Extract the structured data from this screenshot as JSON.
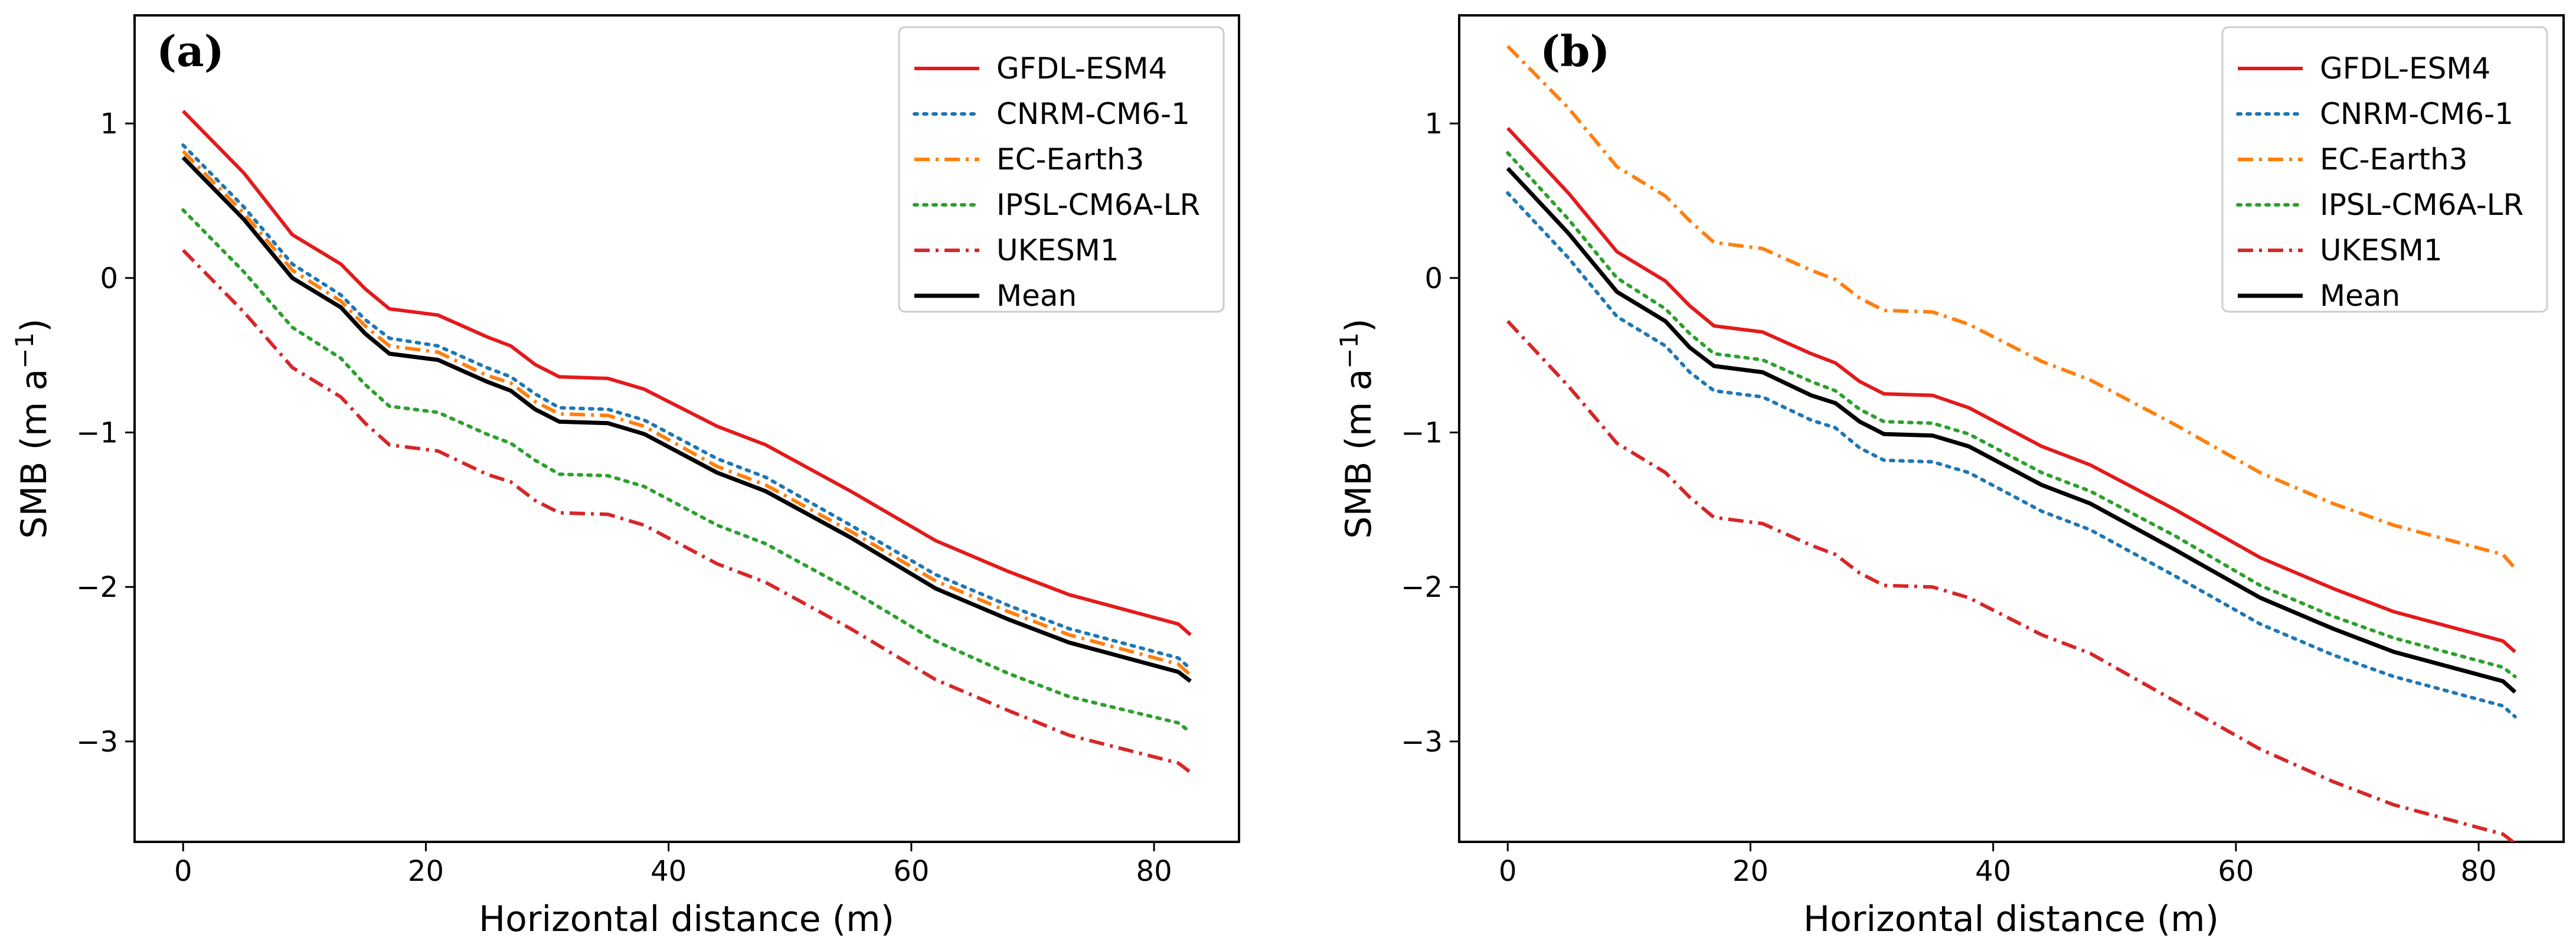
{
  "chart_data": [
    {
      "type": "line",
      "panel_label": "(a)",
      "xlabel": "Horizontal distance (m)",
      "ylabel": "SMB (m a",
      "ylabel_sup": "−1",
      "ylabel_end": ")",
      "xlim": [
        -4,
        87
      ],
      "ylim": [
        -3.65,
        1.7
      ],
      "xticks": [
        0,
        20,
        40,
        60,
        80
      ],
      "yticks": [
        1,
        0,
        -1,
        -2,
        -3
      ],
      "xtick_labels": [
        "0",
        "20",
        "40",
        "60",
        "80"
      ],
      "ytick_labels": [
        "1",
        "0",
        "−1",
        "−2",
        "−3"
      ],
      "legend_position": "top-right",
      "x": [
        0,
        5,
        9,
        13,
        15,
        17,
        21,
        25,
        27,
        29,
        31,
        35,
        38,
        44,
        48,
        55,
        62,
        68,
        73,
        82,
        83
      ],
      "series": [
        {
          "name": "GFDL-ESM4",
          "color": "#e31a1c",
          "style": "solid",
          "values": [
            1.08,
            0.68,
            0.28,
            0.09,
            -0.07,
            -0.2,
            -0.24,
            -0.38,
            -0.44,
            -0.56,
            -0.64,
            -0.65,
            -0.72,
            -0.96,
            -1.08,
            -1.38,
            -1.7,
            -1.9,
            -2.05,
            -2.24,
            -2.31
          ]
        },
        {
          "name": "CNRM-CM6-1",
          "color": "#1f77b4",
          "style": "dotted",
          "values": [
            0.86,
            0.46,
            0.09,
            -0.11,
            -0.27,
            -0.39,
            -0.44,
            -0.58,
            -0.64,
            -0.75,
            -0.84,
            -0.85,
            -0.92,
            -1.17,
            -1.29,
            -1.6,
            -1.92,
            -2.12,
            -2.27,
            -2.46,
            -2.53
          ]
        },
        {
          "name": "EC-Earth3",
          "color": "#ff7f0e",
          "style": "dashdot",
          "values": [
            0.82,
            0.42,
            0.05,
            -0.15,
            -0.31,
            -0.44,
            -0.48,
            -0.63,
            -0.68,
            -0.8,
            -0.88,
            -0.89,
            -0.96,
            -1.22,
            -1.34,
            -1.64,
            -1.96,
            -2.16,
            -2.31,
            -2.5,
            -2.57
          ]
        },
        {
          "name": "IPSL-CM6A-LR",
          "color": "#2ca02c",
          "style": "dotted",
          "values": [
            0.44,
            0.04,
            -0.32,
            -0.52,
            -0.69,
            -0.83,
            -0.87,
            -1.01,
            -1.07,
            -1.18,
            -1.27,
            -1.28,
            -1.35,
            -1.6,
            -1.72,
            -2.02,
            -2.35,
            -2.56,
            -2.71,
            -2.88,
            -2.94
          ]
        },
        {
          "name": "UKESM1",
          "color": "#d62728",
          "style": "dashdot",
          "values": [
            0.18,
            -0.22,
            -0.58,
            -0.77,
            -0.94,
            -1.08,
            -1.12,
            -1.27,
            -1.32,
            -1.44,
            -1.52,
            -1.53,
            -1.6,
            -1.85,
            -1.97,
            -2.27,
            -2.6,
            -2.8,
            -2.96,
            -3.14,
            -3.2
          ]
        },
        {
          "name": "Mean",
          "color": "#000000",
          "style": "solid",
          "values": [
            0.78,
            0.38,
            0.0,
            -0.19,
            -0.36,
            -0.49,
            -0.53,
            -0.67,
            -0.73,
            -0.85,
            -0.93,
            -0.94,
            -1.01,
            -1.26,
            -1.38,
            -1.68,
            -2.01,
            -2.21,
            -2.36,
            -2.55,
            -2.61
          ]
        }
      ]
    },
    {
      "type": "line",
      "panel_label": "(b)",
      "xlabel": "Horizontal distance (m)",
      "ylabel": "SMB (m a",
      "ylabel_sup": "−1",
      "ylabel_end": ")",
      "xlim": [
        -4,
        87
      ],
      "ylim": [
        -3.65,
        1.7
      ],
      "xticks": [
        0,
        20,
        40,
        60,
        80
      ],
      "yticks": [
        1,
        0,
        -1,
        -2,
        -3
      ],
      "xtick_labels": [
        "0",
        "20",
        "40",
        "60",
        "80"
      ],
      "ytick_labels": [
        "1",
        "0",
        "−1",
        "−2",
        "−3"
      ],
      "legend_position": "top-right",
      "x": [
        0,
        5,
        9,
        13,
        15,
        17,
        21,
        25,
        27,
        29,
        31,
        35,
        38,
        44,
        48,
        55,
        62,
        68,
        73,
        82,
        83
      ],
      "series": [
        {
          "name": "GFDL-ESM4",
          "color": "#e31a1c",
          "style": "solid",
          "values": [
            0.97,
            0.55,
            0.17,
            -0.02,
            -0.18,
            -0.31,
            -0.35,
            -0.49,
            -0.55,
            -0.67,
            -0.75,
            -0.76,
            -0.84,
            -1.09,
            -1.21,
            -1.5,
            -1.81,
            -2.01,
            -2.16,
            -2.35,
            -2.42
          ]
        },
        {
          "name": "CNRM-CM6-1",
          "color": "#1f77b4",
          "style": "dotted",
          "values": [
            0.55,
            0.13,
            -0.25,
            -0.44,
            -0.61,
            -0.73,
            -0.77,
            -0.92,
            -0.97,
            -1.1,
            -1.18,
            -1.19,
            -1.26,
            -1.51,
            -1.63,
            -1.93,
            -2.24,
            -2.44,
            -2.58,
            -2.77,
            -2.84
          ]
        },
        {
          "name": "EC-Earth3",
          "color": "#ff7f0e",
          "style": "dashdot",
          "values": [
            1.5,
            1.1,
            0.72,
            0.53,
            0.37,
            0.23,
            0.19,
            0.05,
            -0.01,
            -0.13,
            -0.21,
            -0.22,
            -0.3,
            -0.54,
            -0.66,
            -0.95,
            -1.26,
            -1.46,
            -1.6,
            -1.79,
            -1.88
          ]
        },
        {
          "name": "IPSL-CM6A-LR",
          "color": "#2ca02c",
          "style": "dotted",
          "values": [
            0.81,
            0.38,
            0.0,
            -0.2,
            -0.36,
            -0.49,
            -0.53,
            -0.67,
            -0.73,
            -0.85,
            -0.93,
            -0.94,
            -1.01,
            -1.26,
            -1.38,
            -1.67,
            -1.99,
            -2.19,
            -2.33,
            -2.52,
            -2.58
          ]
        },
        {
          "name": "UKESM1",
          "color": "#d62728",
          "style": "dashdot",
          "values": [
            -0.28,
            -0.7,
            -1.07,
            -1.26,
            -1.42,
            -1.55,
            -1.59,
            -1.73,
            -1.79,
            -1.91,
            -1.99,
            -2.0,
            -2.07,
            -2.31,
            -2.43,
            -2.74,
            -3.05,
            -3.26,
            -3.41,
            -3.6,
            -3.66
          ]
        },
        {
          "name": "Mean",
          "color": "#000000",
          "style": "solid",
          "values": [
            0.71,
            0.29,
            -0.09,
            -0.28,
            -0.45,
            -0.57,
            -0.61,
            -0.76,
            -0.81,
            -0.93,
            -1.01,
            -1.02,
            -1.09,
            -1.34,
            -1.46,
            -1.76,
            -2.07,
            -2.27,
            -2.42,
            -2.61,
            -2.68
          ]
        }
      ]
    }
  ]
}
